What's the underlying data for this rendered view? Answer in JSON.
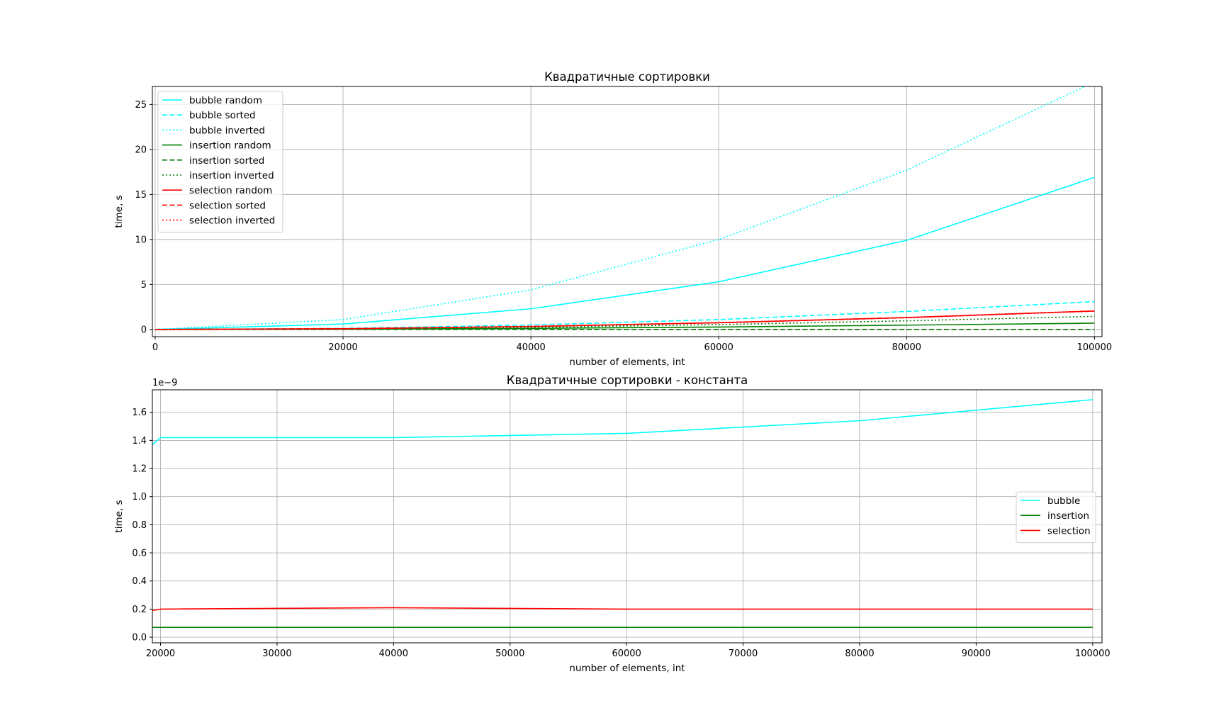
{
  "chart_data": [
    {
      "type": "line",
      "title": "Квадратичные сортировки",
      "xlabel": "number of elements, int",
      "ylabel": "time, s",
      "xlim": [
        -300,
        100800
      ],
      "ylim": [
        -0.8,
        27
      ],
      "xticks": [
        0,
        20000,
        40000,
        60000,
        80000,
        100000
      ],
      "xtick_labels": [
        "0",
        "20000",
        "40000",
        "60000",
        "80000",
        "100000"
      ],
      "yticks": [
        0,
        5,
        10,
        15,
        20,
        25
      ],
      "ytick_labels": [
        "0",
        "5",
        "10",
        "15",
        "20",
        "25"
      ],
      "grid": true,
      "legend_position": "upper-left",
      "x": [
        0,
        20000,
        40000,
        60000,
        80000,
        100000
      ],
      "series": [
        {
          "name": "bubble random",
          "color": "#00ffff",
          "dash": "solid",
          "values": [
            0,
            0.6,
            2.3,
            5.3,
            9.9,
            16.9
          ]
        },
        {
          "name": "bubble sorted",
          "color": "#00ffff",
          "dash": "dashed",
          "values": [
            0,
            0.12,
            0.5,
            1.1,
            2.0,
            3.1
          ]
        },
        {
          "name": "bubble inverted",
          "color": "#00ffff",
          "dash": "dotted",
          "values": [
            0,
            1.1,
            4.4,
            10.0,
            17.7,
            27.5
          ]
        },
        {
          "name": "insertion random",
          "color": "#008000",
          "dash": "solid",
          "values": [
            0,
            0.03,
            0.12,
            0.27,
            0.48,
            0.7
          ]
        },
        {
          "name": "insertion sorted",
          "color": "#008000",
          "dash": "dashed",
          "values": [
            0,
            0,
            0,
            0,
            0,
            0
          ]
        },
        {
          "name": "insertion inverted",
          "color": "#008000",
          "dash": "dotted",
          "values": [
            0,
            0.06,
            0.24,
            0.54,
            0.96,
            1.45
          ]
        },
        {
          "name": "selection random",
          "color": "#ff0000",
          "dash": "solid",
          "values": [
            0,
            0.08,
            0.33,
            0.75,
            1.32,
            2.05
          ]
        },
        {
          "name": "selection sorted",
          "color": "#ff0000",
          "dash": "dashed",
          "values": [
            0,
            0.08,
            0.33,
            0.74,
            1.31,
            2.04
          ]
        },
        {
          "name": "selection inverted",
          "color": "#ff0000",
          "dash": "dotted",
          "values": [
            0,
            0.08,
            0.34,
            0.76,
            1.33,
            2.07
          ]
        }
      ]
    },
    {
      "type": "line",
      "title": "Квадратичные сортировки - константа",
      "xlabel": "number of elements, int",
      "ylabel": "time, s",
      "offset_label": "1e−9",
      "xlim": [
        19300,
        100800
      ],
      "ylim": [
        -0.04,
        1.76
      ],
      "xticks": [
        20000,
        30000,
        40000,
        50000,
        60000,
        70000,
        80000,
        90000,
        100000
      ],
      "xtick_labels": [
        "20000",
        "30000",
        "40000",
        "50000",
        "60000",
        "70000",
        "80000",
        "90000",
        "100000"
      ],
      "yticks": [
        0.0,
        0.2,
        0.4,
        0.6,
        0.8,
        1.0,
        1.2,
        1.4,
        1.6
      ],
      "ytick_labels": [
        "0.0",
        "0.2",
        "0.4",
        "0.6",
        "0.8",
        "1.0",
        "1.2",
        "1.4",
        "1.6"
      ],
      "grid": true,
      "legend_position": "center-right",
      "x": [
        19300,
        20000,
        40000,
        60000,
        80000,
        100000
      ],
      "series": [
        {
          "name": "bubble",
          "color": "#00ffff",
          "dash": "solid",
          "values": [
            1.37,
            1.42,
            1.42,
            1.45,
            1.54,
            1.69
          ]
        },
        {
          "name": "insertion",
          "color": "#008000",
          "dash": "solid",
          "values": [
            0.07,
            0.07,
            0.07,
            0.07,
            0.07,
            0.07
          ]
        },
        {
          "name": "selection",
          "color": "#ff0000",
          "dash": "solid",
          "values": [
            0.19,
            0.2,
            0.21,
            0.2,
            0.2,
            0.2
          ]
        }
      ]
    }
  ]
}
